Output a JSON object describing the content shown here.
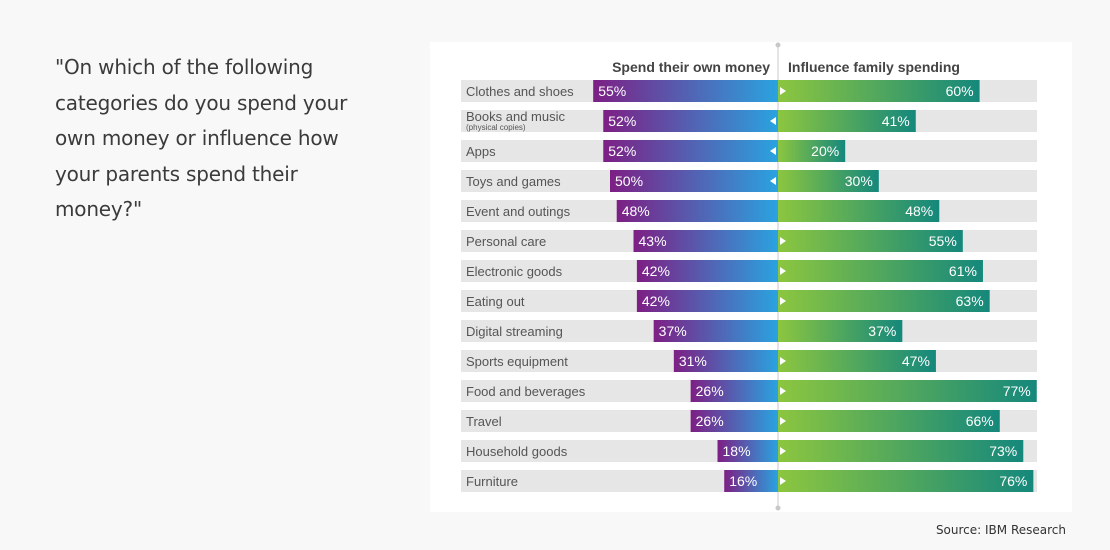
{
  "question": "\"On which of the following categories do you spend your own money or influence how your parents spend their money?\"",
  "source": "Source: IBM Research",
  "colors": {
    "left_gradient_start": "#7d1f84",
    "left_gradient_end": "#2aa3e0",
    "right_gradient_start": "#8cc63f",
    "right_gradient_end": "#15887c",
    "row_background": "#e6e6e6",
    "divider": "#c8c8c8"
  },
  "chart_data": {
    "type": "bar",
    "layout": "diverging-horizontal",
    "xlim": [
      0,
      100
    ],
    "legend": [
      "Spend their own money",
      "Influence family spending"
    ],
    "categories": [
      {
        "label": "Clothes and shoes",
        "sublabel": ""
      },
      {
        "label": "Books and music",
        "sublabel": "(physical copies)"
      },
      {
        "label": "Apps",
        "sublabel": ""
      },
      {
        "label": "Toys and games",
        "sublabel": ""
      },
      {
        "label": "Event and outings",
        "sublabel": ""
      },
      {
        "label": "Personal care",
        "sublabel": ""
      },
      {
        "label": "Electronic goods",
        "sublabel": ""
      },
      {
        "label": "Eating out",
        "sublabel": ""
      },
      {
        "label": "Digital streaming",
        "sublabel": ""
      },
      {
        "label": "Sports equipment",
        "sublabel": ""
      },
      {
        "label": "Food and beverages",
        "sublabel": ""
      },
      {
        "label": "Travel",
        "sublabel": ""
      },
      {
        "label": "Household goods",
        "sublabel": ""
      },
      {
        "label": "Furniture",
        "sublabel": ""
      }
    ],
    "series": [
      {
        "name": "Spend their own money",
        "values": [
          55,
          52,
          52,
          50,
          48,
          43,
          42,
          42,
          37,
          31,
          26,
          26,
          18,
          16
        ]
      },
      {
        "name": "Influence family spending",
        "values": [
          60,
          41,
          20,
          30,
          48,
          55,
          61,
          63,
          37,
          47,
          77,
          66,
          73,
          76
        ]
      }
    ],
    "value_suffix": "%",
    "markers": [
      "right",
      "left",
      "left",
      "left",
      "none",
      "right",
      "right",
      "right",
      "none",
      "right",
      "right",
      "right",
      "right",
      "right"
    ]
  }
}
